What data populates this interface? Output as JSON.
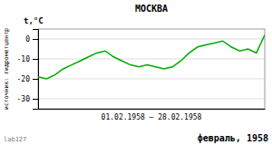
{
  "chart_data": {
    "type": "line",
    "title": "МОСКВА",
    "xlabel": "01.02.1958 – 28.02.1958",
    "ylabel": "t,°C",
    "annotations": [
      "источник: гидрометцентр",
      "lab127",
      "февраль, 1958"
    ],
    "x": [
      1,
      2,
      3,
      4,
      5,
      6,
      7,
      8,
      9,
      10,
      11,
      12,
      13,
      14,
      15,
      16,
      17,
      18,
      19,
      20,
      21,
      22,
      23,
      24,
      25,
      26,
      27,
      28
    ],
    "values": [
      -19,
      -20,
      -18,
      -15,
      -13,
      -11,
      -9,
      -7,
      -6,
      -9,
      -11,
      -13,
      -14,
      -13,
      -14,
      -15,
      -14,
      -11,
      -7,
      -4,
      -3,
      -2,
      -1,
      -4,
      -6,
      -5,
      -7,
      2
    ],
    "color": "#00aa00",
    "xlim": [
      1,
      28
    ],
    "ylim": [
      -35,
      5
    ],
    "yticks": [
      0,
      -10,
      -20,
      -30
    ],
    "grid": true,
    "tick_labels": "y"
  }
}
